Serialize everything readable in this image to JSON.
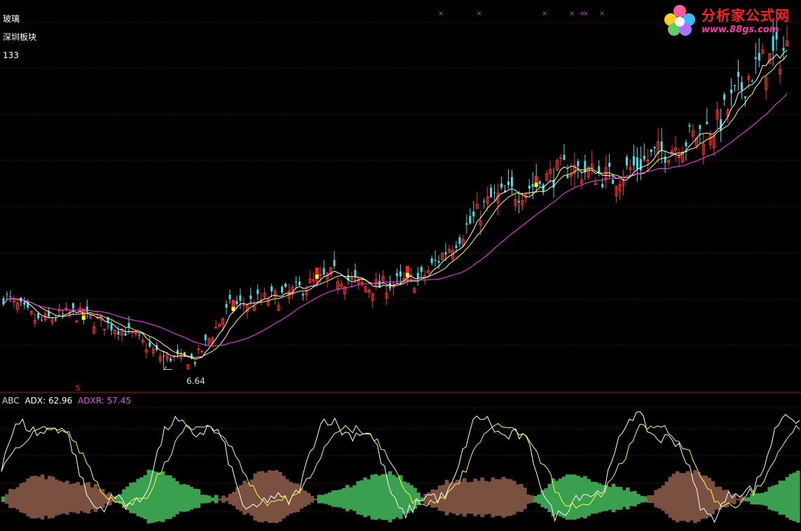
{
  "header": {
    "stock_name": "玻璃",
    "sector": "深圳板块",
    "code": "133"
  },
  "logo": {
    "title": "分析家公式网",
    "url": "www.88gs.com"
  },
  "price_panel": {
    "low_label": "6.64",
    "signal_mark": "S",
    "top_marks_symbol": "×",
    "ma_colors": {
      "ma_short": "#ffffff",
      "ma_mid": "#ffff60",
      "ma_long": "#ff40ff"
    },
    "candle_colors": {
      "up": "#ff3030",
      "down": "#40e0e8",
      "flag_up": "#ff2020",
      "flag_low": "#ffff00"
    }
  },
  "indicator": {
    "name": "ABC",
    "adx_label": "ADX: 62.96",
    "adxr_label": "ADXR: 57.45",
    "colors": {
      "adx": "#ffffff",
      "adxr": "#ffff40",
      "pos_area": "#7a5040",
      "neg_area": "#3aa050",
      "name": "#dddddd",
      "adxr_text": "#ff40ff"
    }
  },
  "chart_data": [
    {
      "type": "candlestick",
      "title": "",
      "annotations": [
        "6.64"
      ],
      "trend_anchors_price": [
        [
          0,
          10.0
        ],
        [
          10,
          8.8
        ],
        [
          20,
          9.2
        ],
        [
          35,
          8.4
        ],
        [
          45,
          7.2
        ],
        [
          55,
          7.0
        ],
        [
          65,
          9.5
        ],
        [
          80,
          10.0
        ],
        [
          95,
          11.0
        ],
        [
          105,
          10.4
        ],
        [
          120,
          10.8
        ],
        [
          140,
          14.5
        ],
        [
          150,
          15.0
        ],
        [
          162,
          16.0
        ],
        [
          175,
          15.5
        ],
        [
          190,
          16.8
        ],
        [
          205,
          18.0
        ],
        [
          215,
          20.5
        ],
        [
          225,
          21.5
        ]
      ]
    },
    {
      "type": "line",
      "title": "",
      "series": [
        {
          "name": "ADX",
          "values": []
        },
        {
          "name": "ADXR",
          "values": []
        }
      ],
      "last_values": {
        "ADX": 62.96,
        "ADXR": 57.45
      }
    }
  ]
}
